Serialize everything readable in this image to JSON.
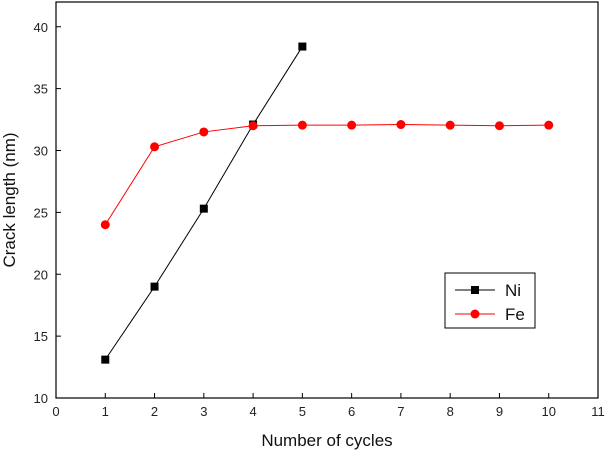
{
  "chart_data": {
    "type": "line",
    "title": "",
    "xlabel": "Number of cycles",
    "ylabel": "Crack length (nm)",
    "xlim": [
      0,
      11
    ],
    "ylim": [
      10,
      42
    ],
    "xticks": [
      0,
      1,
      2,
      3,
      4,
      5,
      6,
      7,
      8,
      9,
      10,
      11
    ],
    "yticks": [
      10,
      15,
      20,
      25,
      30,
      35,
      40
    ],
    "legend_position": "right-middle",
    "series": [
      {
        "name": "Ni",
        "marker": "square",
        "color": "#000000",
        "x": [
          1,
          2,
          3,
          4,
          5
        ],
        "y": [
          13.1,
          19.0,
          25.3,
          32.1,
          38.4
        ]
      },
      {
        "name": "Fe",
        "marker": "circle",
        "color": "#ff0000",
        "x": [
          1,
          2,
          3,
          4,
          5,
          6,
          7,
          8,
          9,
          10
        ],
        "y": [
          24.0,
          30.3,
          31.5,
          32.0,
          32.05,
          32.05,
          32.1,
          32.05,
          32.0,
          32.05
        ]
      }
    ]
  }
}
